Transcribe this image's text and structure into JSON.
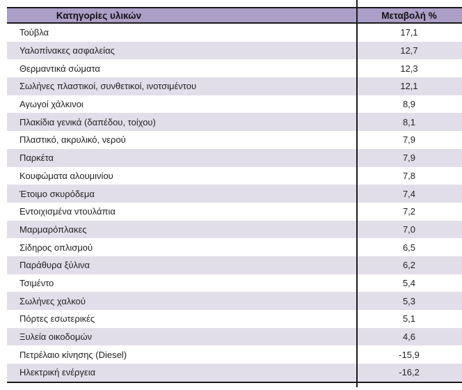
{
  "chart_data": {
    "type": "table",
    "columns": [
      "Κατηγορίες υλικών",
      "Μεταβολή %"
    ],
    "rows": [
      [
        "Τούβλα",
        "17,1"
      ],
      [
        "Υαλοπίνακες ασφαλείας",
        "12,7"
      ],
      [
        "Θερμαντικά σώματα",
        "12,3"
      ],
      [
        "Σωλήνες πλαστικοί, συνθετικοί, ινοτσιμέντου",
        "12,1"
      ],
      [
        "Αγωγοί χάλκινοι",
        "8,9"
      ],
      [
        "Πλακίδια γενικά (δαπέδου, τοίχου)",
        "8,1"
      ],
      [
        "Πλαστικό, ακρυλικό, νερού",
        "7,9"
      ],
      [
        "Παρκέτα",
        "7,9"
      ],
      [
        "Κουφώματα αλουμινίου",
        "7,8"
      ],
      [
        "Έτοιμο σκυρόδεμα",
        "7,4"
      ],
      [
        "Εντοιχισμένα ντουλάπια",
        "7,2"
      ],
      [
        "Μαρμαρόπλακες",
        "7,0"
      ],
      [
        "Σίδηρος οπλισμού",
        "6,5"
      ],
      [
        "Παράθυρα ξύλινα",
        "6,2"
      ],
      [
        "Τσιμέντο",
        "5,4"
      ],
      [
        "Σωλήνες χαλκού",
        "5,3"
      ],
      [
        "Πόρτες εσωτερικές",
        "5,1"
      ],
      [
        "Ξυλεία οικοδομών",
        "4,6"
      ],
      [
        "Πετρέλαιο κίνησης (Diesel)",
        "-15,9"
      ],
      [
        "Ηλεκτρική ενέργεια",
        "-16,2"
      ]
    ]
  },
  "colors": {
    "header_bg": "#ab9fc8",
    "alt_row_bg": "#e2dee9",
    "rule": "#1a1a1a",
    "text": "#1f1f1f"
  }
}
